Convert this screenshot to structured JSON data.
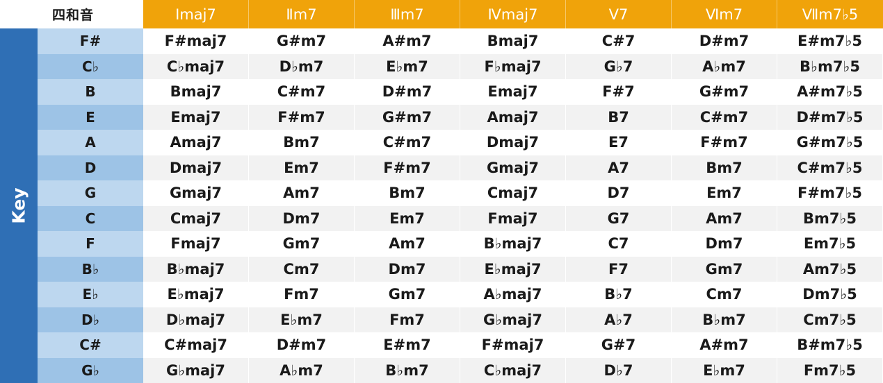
{
  "corner_label": "四和音",
  "side_label": "Key",
  "columns": [
    "Imaj7",
    "Ⅱm7",
    "Ⅲm7",
    "Ⅳmaj7",
    "Ⅴ7",
    "Ⅵm7",
    "Ⅶm7♭5"
  ],
  "rows": [
    {
      "key": "F#",
      "chords": [
        "F#maj7",
        "G#m7",
        "A#m7",
        "Bmaj7",
        "C#7",
        "D#m7",
        "E#m7♭5"
      ]
    },
    {
      "key": "C♭",
      "chords": [
        "C♭maj7",
        "D♭m7",
        "E♭m7",
        "F♭maj7",
        "G♭7",
        "A♭m7",
        "B♭m7♭5"
      ]
    },
    {
      "key": "B",
      "chords": [
        "Bmaj7",
        "C#m7",
        "D#m7",
        "Emaj7",
        "F#7",
        "G#m7",
        "A#m7♭5"
      ]
    },
    {
      "key": "E",
      "chords": [
        "Emaj7",
        "F#m7",
        "G#m7",
        "Amaj7",
        "B7",
        "C#m7",
        "D#m7♭5"
      ]
    },
    {
      "key": "A",
      "chords": [
        "Amaj7",
        "Bm7",
        "C#m7",
        "Dmaj7",
        "E7",
        "F#m7",
        "G#m7♭5"
      ]
    },
    {
      "key": "D",
      "chords": [
        "Dmaj7",
        "Em7",
        "F#m7",
        "Gmaj7",
        "A7",
        "Bm7",
        "C#m7♭5"
      ]
    },
    {
      "key": "G",
      "chords": [
        "Gmaj7",
        "Am7",
        "Bm7",
        "Cmaj7",
        "D7",
        "Em7",
        "F#m7♭5"
      ]
    },
    {
      "key": "C",
      "chords": [
        "Cmaj7",
        "Dm7",
        "Em7",
        "Fmaj7",
        "G7",
        "Am7",
        "Bm7♭5"
      ]
    },
    {
      "key": "F",
      "chords": [
        "Fmaj7",
        "Gm7",
        "Am7",
        "B♭maj7",
        "C7",
        "Dm7",
        "Em7♭5"
      ]
    },
    {
      "key": "B♭",
      "chords": [
        "B♭maj7",
        "Cm7",
        "Dm7",
        "E♭maj7",
        "F7",
        "Gm7",
        "Am7♭5"
      ]
    },
    {
      "key": "E♭",
      "chords": [
        "E♭maj7",
        "Fm7",
        "Gm7",
        "A♭maj7",
        "B♭7",
        "Cm7",
        "Dm7♭5"
      ]
    },
    {
      "key": "D♭",
      "chords": [
        "D♭maj7",
        "E♭m7",
        "Fm7",
        "G♭maj7",
        "A♭7",
        "B♭m7",
        "Cm7♭5"
      ]
    },
    {
      "key": "C#",
      "chords": [
        "C#maj7",
        "D#m7",
        "E#m7",
        "F#maj7",
        "G#7",
        "A#m7",
        "B#m7♭5"
      ]
    },
    {
      "key": "G♭",
      "chords": [
        "G♭maj7",
        "A♭m7",
        "B♭m7",
        "C♭maj7",
        "D♭7",
        "E♭m7",
        "Fm7♭5"
      ]
    }
  ],
  "colors": {
    "header_orange": "#f0a30a",
    "key_band_blue": "#2f6fb5",
    "key_cell_light": "#bdd7ef",
    "key_cell_dark": "#9dc3e6",
    "row_alt_grey": "#f2f2f2"
  }
}
